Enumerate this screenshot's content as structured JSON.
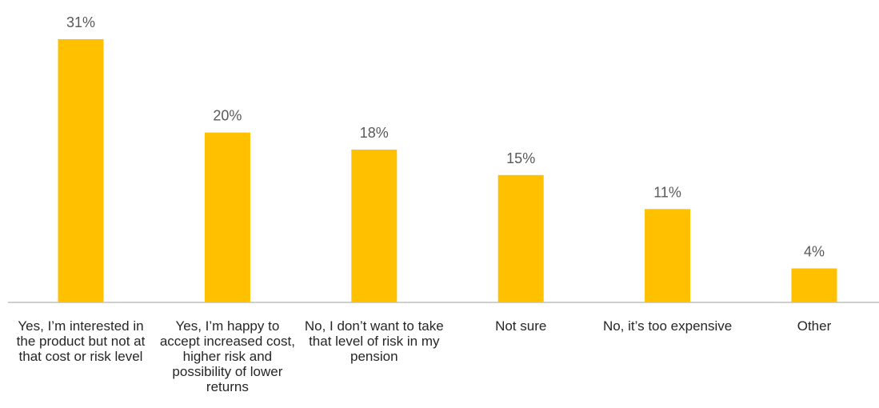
{
  "chart_data": {
    "type": "bar",
    "title": "",
    "xlabel": "",
    "ylabel": "",
    "categories": [
      "Yes, I’m interested in the product but not at that cost or risk level",
      "Yes, I’m happy to accept increased cost, higher risk and possibility of lower returns",
      "No, I don’t want to take that level of risk in my pension",
      "Not sure",
      "No, it’s too expensive",
      "Other"
    ],
    "values": [
      31,
      20,
      18,
      15,
      11,
      4
    ],
    "data_labels": [
      "31%",
      "20%",
      "18%",
      "15%",
      "11%",
      "4%"
    ],
    "ylim": [
      0,
      31
    ],
    "grid": false,
    "legend": "none",
    "colors": {
      "bar": "#FFC000",
      "axis": "#BFBFBF",
      "text": "#595959",
      "category_text": "#262626"
    }
  }
}
